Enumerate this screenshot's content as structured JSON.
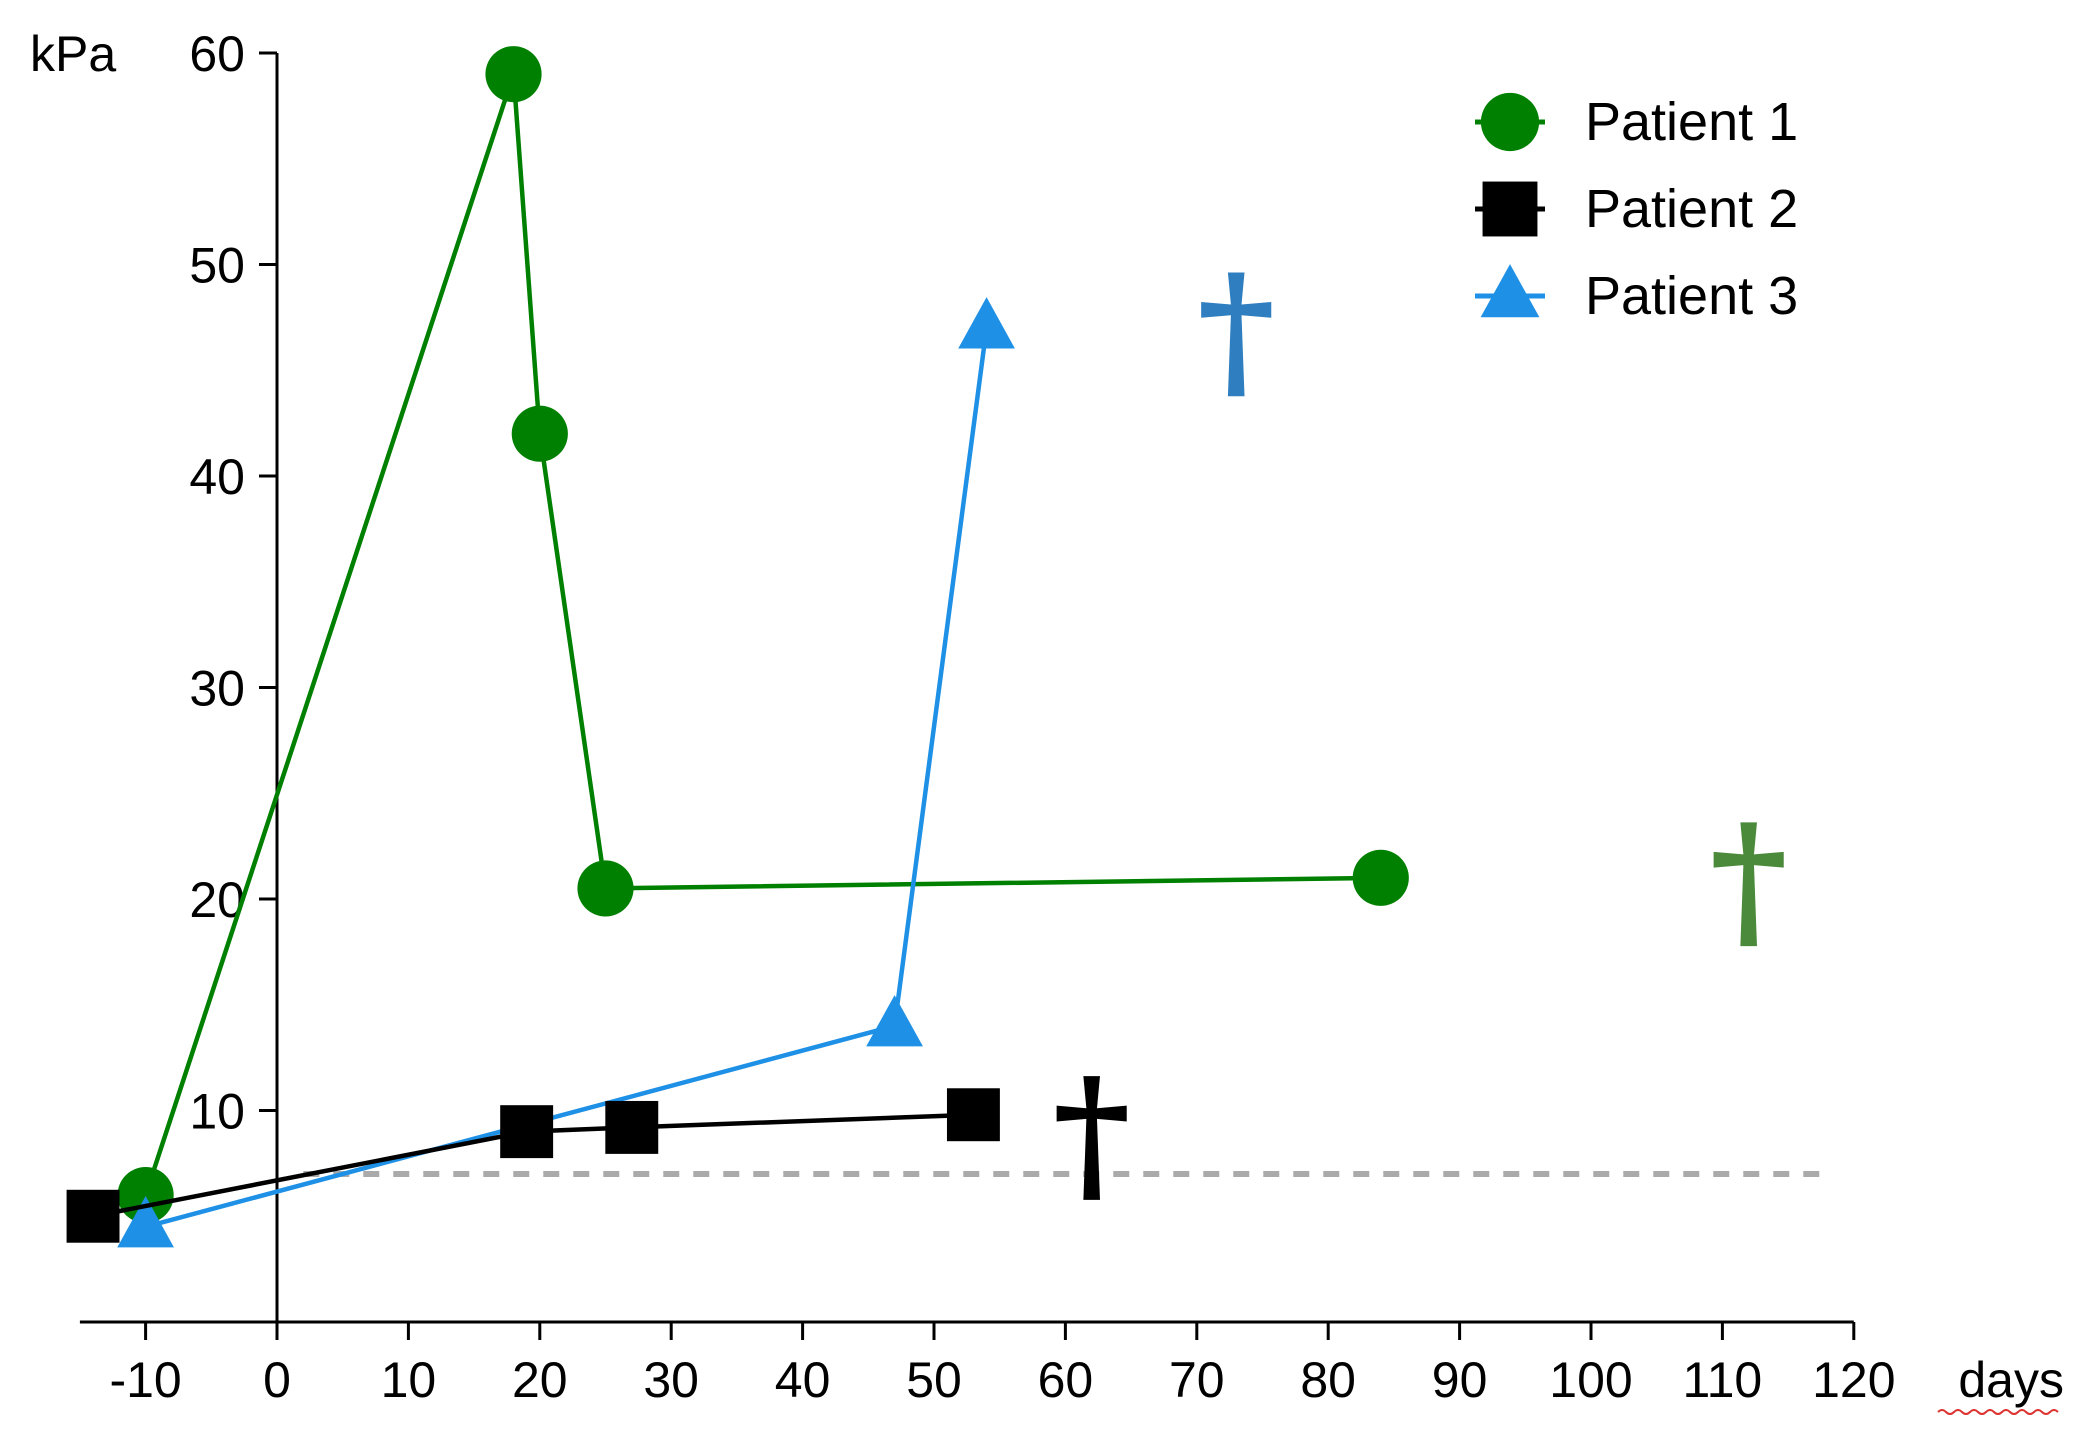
{
  "chart_data": {
    "type": "line",
    "title": "",
    "xlabel": "days",
    "ylabel": "kPa",
    "xlim": [
      -15,
      120
    ],
    "ylim": [
      0,
      60
    ],
    "x_ticks": [
      -10,
      0,
      10,
      20,
      30,
      40,
      50,
      60,
      70,
      80,
      90,
      100,
      110,
      120
    ],
    "y_ticks": [
      10,
      20,
      30,
      40,
      50,
      60
    ],
    "grid": false,
    "legend_position": "top-right",
    "reference_line": {
      "y": 7,
      "style": "dashed",
      "color": "#aaaaaa"
    },
    "series": [
      {
        "name": "Patient 1",
        "color": "#008000",
        "marker": "circle",
        "x": [
          -10,
          18,
          20,
          25,
          84
        ],
        "y": [
          6,
          59,
          42,
          20.5,
          21
        ],
        "death_marker": {
          "x": 112,
          "y": 22,
          "symbol": "†",
          "color": "#4a8a3a"
        }
      },
      {
        "name": "Patient 2",
        "color": "#000000",
        "marker": "square",
        "x": [
          -14,
          19,
          27,
          53
        ],
        "y": [
          5,
          9,
          9.2,
          9.8
        ],
        "death_marker": {
          "x": 62,
          "y": 10,
          "symbol": "†",
          "color": "#000000"
        }
      },
      {
        "name": "Patient 3",
        "color": "#1e90e6",
        "marker": "triangle",
        "x": [
          -10,
          47,
          54
        ],
        "y": [
          4.5,
          14,
          47
        ],
        "death_marker": {
          "x": 73,
          "y": 48,
          "symbol": "†",
          "color": "#2f7fc0"
        }
      }
    ]
  }
}
